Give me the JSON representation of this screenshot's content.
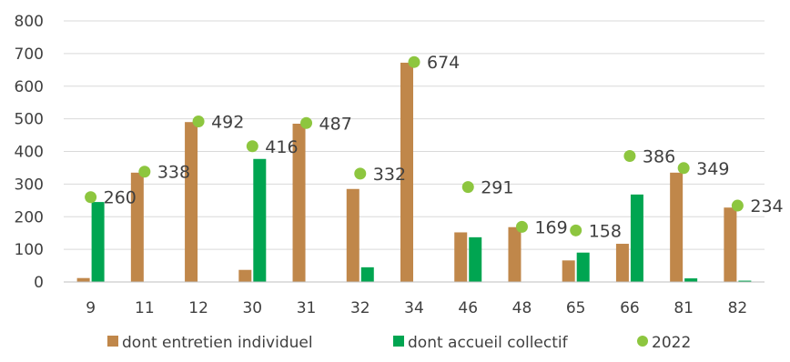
{
  "chart_data": {
    "type": "bar",
    "categories": [
      "9",
      "11",
      "12",
      "30",
      "31",
      "32",
      "34",
      "46",
      "48",
      "65",
      "66",
      "81",
      "82"
    ],
    "series": [
      {
        "name": "dont entretien individuel",
        "type": "bar",
        "color": "#c0874a",
        "values": [
          12,
          335,
          490,
          37,
          485,
          285,
          672,
          152,
          168,
          66,
          117,
          335,
          228
        ]
      },
      {
        "name": "dont accueil collectif",
        "type": "bar",
        "color": "#00a551",
        "values": [
          245,
          0,
          0,
          377,
          0,
          45,
          0,
          137,
          0,
          90,
          268,
          11,
          4
        ]
      },
      {
        "name": "2022",
        "type": "scatter",
        "color": "#8dc63f",
        "values": [
          260,
          338,
          492,
          416,
          487,
          332,
          674,
          291,
          169,
          158,
          386,
          349,
          234
        ],
        "labels": [
          "260",
          "338",
          "492",
          "416",
          "487",
          "332",
          "674",
          "291",
          "169",
          "158",
          "386",
          "349",
          "234"
        ]
      }
    ],
    "ylim": [
      0,
      800
    ],
    "yticks": [
      "0",
      "100",
      "200",
      "300",
      "400",
      "500",
      "600",
      "700",
      "800"
    ],
    "grid": true,
    "legend": "bottom",
    "xlabel": "",
    "ylabel": ""
  }
}
